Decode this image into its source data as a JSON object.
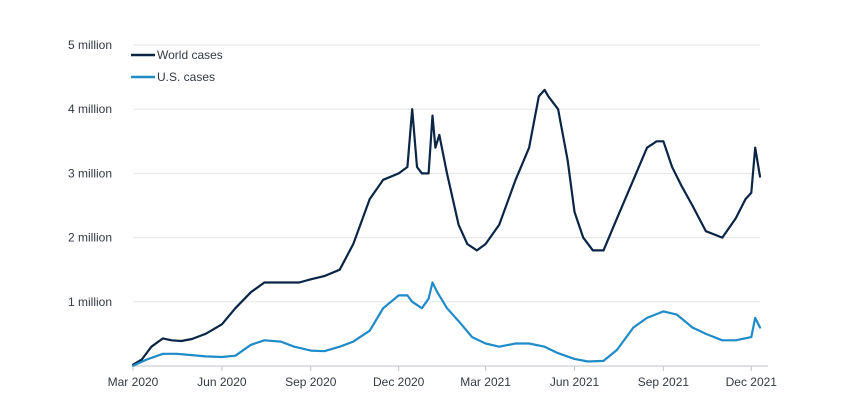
{
  "chart_data": {
    "type": "line",
    "title": "",
    "xlabel": "",
    "ylabel": "",
    "ylim": [
      0,
      5000000
    ],
    "yticks": [
      {
        "value": 1000000,
        "label": "1 million"
      },
      {
        "value": 2000000,
        "label": "2 million"
      },
      {
        "value": 3000000,
        "label": "3 million"
      },
      {
        "value": 4000000,
        "label": "4 million"
      },
      {
        "value": 5000000,
        "label": "5 million"
      }
    ],
    "xlim": [
      "2020-03-01",
      "2021-12-10"
    ],
    "xticks": [
      {
        "value": "2020-03-01",
        "label": "Mar 2020"
      },
      {
        "value": "2020-06-01",
        "label": "Jun 2020"
      },
      {
        "value": "2020-09-01",
        "label": "Sep 2020"
      },
      {
        "value": "2020-12-01",
        "label": "Dec 2020"
      },
      {
        "value": "2021-03-01",
        "label": "Mar 2021"
      },
      {
        "value": "2021-06-01",
        "label": "Jun 2021"
      },
      {
        "value": "2021-09-01",
        "label": "Sep 2021"
      },
      {
        "value": "2021-12-01",
        "label": "Dec 2021"
      }
    ],
    "grid": "horizontal",
    "legend": "top-left",
    "series": [
      {
        "name": "World cases",
        "color": "#0b2547",
        "x": [
          "2020-03-01",
          "2020-03-10",
          "2020-03-20",
          "2020-04-01",
          "2020-04-10",
          "2020-04-20",
          "2020-05-01",
          "2020-05-15",
          "2020-06-01",
          "2020-06-15",
          "2020-07-01",
          "2020-07-15",
          "2020-08-01",
          "2020-08-10",
          "2020-08-20",
          "2020-09-01",
          "2020-09-15",
          "2020-10-01",
          "2020-10-15",
          "2020-11-01",
          "2020-11-15",
          "2020-12-01",
          "2020-12-10",
          "2020-12-15",
          "2020-12-20",
          "2020-12-25",
          "2021-01-01",
          "2021-01-05",
          "2021-01-08",
          "2021-01-12",
          "2021-01-20",
          "2021-02-01",
          "2021-02-10",
          "2021-02-20",
          "2021-03-01",
          "2021-03-15",
          "2021-04-01",
          "2021-04-15",
          "2021-04-25",
          "2021-05-01",
          "2021-05-05",
          "2021-05-15",
          "2021-05-25",
          "2021-06-01",
          "2021-06-10",
          "2021-06-20",
          "2021-07-01",
          "2021-07-15",
          "2021-08-01",
          "2021-08-15",
          "2021-08-25",
          "2021-09-01",
          "2021-09-10",
          "2021-09-20",
          "2021-10-01",
          "2021-10-15",
          "2021-11-01",
          "2021-11-15",
          "2021-11-25",
          "2021-12-01",
          "2021-12-05",
          "2021-12-10"
        ],
        "values": [
          20000,
          100000,
          300000,
          430000,
          400000,
          390000,
          420000,
          500000,
          650000,
          900000,
          1150000,
          1300000,
          1300000,
          1300000,
          1300000,
          1350000,
          1400000,
          1500000,
          1900000,
          2600000,
          2900000,
          3000000,
          3100000,
          4000000,
          3100000,
          3000000,
          3000000,
          3900000,
          3400000,
          3600000,
          3000000,
          2200000,
          1900000,
          1800000,
          1900000,
          2200000,
          2900000,
          3400000,
          4200000,
          4300000,
          4200000,
          4000000,
          3200000,
          2400000,
          2000000,
          1800000,
          1800000,
          2300000,
          2900000,
          3400000,
          3500000,
          3500000,
          3100000,
          2800000,
          2500000,
          2100000,
          2000000,
          2300000,
          2600000,
          2700000,
          3400000,
          2950000
        ]
      },
      {
        "name": "U.S. cases",
        "color": "#1f8bc8",
        "x": [
          "2020-03-01",
          "2020-03-15",
          "2020-04-01",
          "2020-04-15",
          "2020-05-01",
          "2020-05-15",
          "2020-06-01",
          "2020-06-15",
          "2020-07-01",
          "2020-07-15",
          "2020-08-01",
          "2020-08-15",
          "2020-09-01",
          "2020-09-15",
          "2020-10-01",
          "2020-10-15",
          "2020-11-01",
          "2020-11-15",
          "2020-12-01",
          "2020-12-10",
          "2020-12-15",
          "2020-12-25",
          "2021-01-01",
          "2021-01-05",
          "2021-01-10",
          "2021-01-20",
          "2021-02-01",
          "2021-02-15",
          "2021-03-01",
          "2021-03-15",
          "2021-04-01",
          "2021-04-15",
          "2021-05-01",
          "2021-05-15",
          "2021-06-01",
          "2021-06-15",
          "2021-07-01",
          "2021-07-15",
          "2021-08-01",
          "2021-08-15",
          "2021-09-01",
          "2021-09-15",
          "2021-10-01",
          "2021-10-15",
          "2021-11-01",
          "2021-11-15",
          "2021-12-01",
          "2021-12-05",
          "2021-12-10"
        ],
        "values": [
          5000,
          100000,
          190000,
          190000,
          170000,
          150000,
          140000,
          160000,
          330000,
          400000,
          380000,
          300000,
          240000,
          230000,
          300000,
          380000,
          550000,
          900000,
          1100000,
          1100000,
          1000000,
          900000,
          1050000,
          1300000,
          1150000,
          900000,
          700000,
          450000,
          350000,
          300000,
          350000,
          350000,
          300000,
          200000,
          110000,
          70000,
          80000,
          250000,
          600000,
          750000,
          850000,
          800000,
          600000,
          500000,
          400000,
          400000,
          450000,
          750000,
          600000
        ]
      }
    ]
  }
}
